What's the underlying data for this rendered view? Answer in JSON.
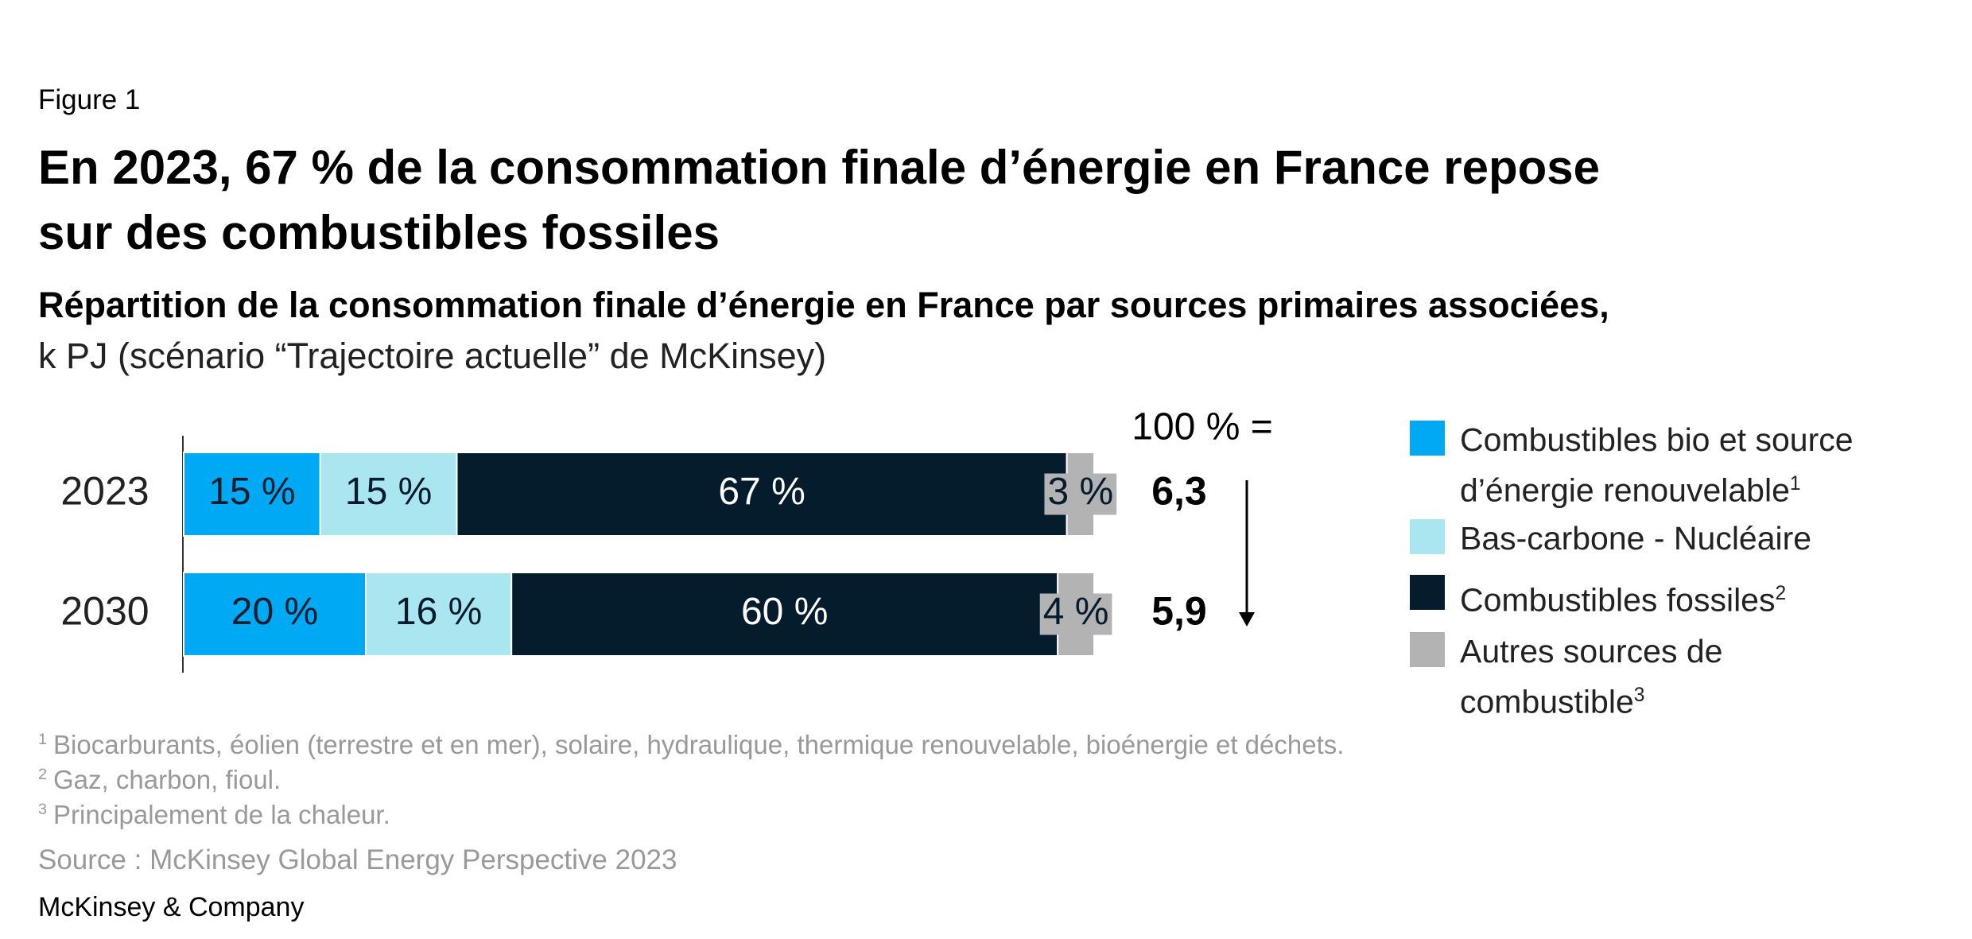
{
  "figure_label": "Figure 1",
  "chart_data": {
    "type": "stacked-barh",
    "title": [
      "En 2023, 67 % de la consommation finale d’énergie en France repose",
      "sur des combustibles fossiles"
    ],
    "subtitle": "Répartition de la consommation finale d’énergie en France par sources primaires associées,",
    "subtitle_units": "k PJ (scénario “Trajectoire actuelle” de McKinsey)",
    "categories": [
      "2023",
      "2030"
    ],
    "xlim": [
      0,
      100
    ],
    "series": [
      {
        "name": "Combustibles bio et source d’énergie renouvelable",
        "footnote": "1",
        "color": "#00a9f4",
        "text_color": "#051c2c",
        "values": [
          15,
          20
        ],
        "value_labels": [
          "15 %",
          "20 %"
        ]
      },
      {
        "name": "Bas-carbone - Nucléaire",
        "color": "#aae6f0",
        "text_color": "#051c2c",
        "values": [
          15,
          16
        ],
        "value_labels": [
          "15 %",
          "16 %"
        ]
      },
      {
        "name": "Combustibles fossiles",
        "footnote": "2",
        "color": "#051c2c",
        "text_color": "#ffffff",
        "values": [
          67,
          60
        ],
        "value_labels": [
          "67 %",
          "60 %"
        ]
      },
      {
        "name": "Autres sources de combustible",
        "footnote": "3",
        "color": "#b3b3b3",
        "text_color": "#051c2c",
        "values": [
          3,
          4
        ],
        "value_labels": [
          "3 %",
          "4 %"
        ]
      }
    ],
    "totals_header": "100 % =",
    "totals": [
      {
        "value": 6.3,
        "label": "6,3"
      },
      {
        "value": 5.9,
        "label": "5,9"
      }
    ]
  },
  "footnotes": [
    {
      "mark": "1",
      "text": "Biocarburants, éolien (terrestre et en mer), solaire, hydraulique, thermique renouvelable, bioénergie et déchets."
    },
    {
      "mark": "2",
      "text": "Gaz, charbon, fioul."
    },
    {
      "mark": "3",
      "text": "Principalement de la chaleur."
    }
  ],
  "source": "Source : McKinsey Global Energy Perspective 2023",
  "brand": "McKinsey & Company"
}
